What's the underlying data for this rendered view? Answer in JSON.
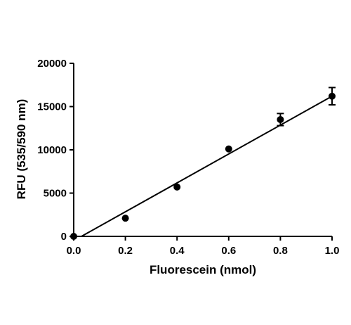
{
  "chart_data": {
    "type": "scatter",
    "xlabel": "Fluorescein (nmol)",
    "ylabel": "RFU (535/590 nm)",
    "xlim": [
      0,
      1.0
    ],
    "ylim": [
      0,
      20000
    ],
    "x_ticks": [
      0.0,
      0.2,
      0.4,
      0.6,
      0.8,
      1.0
    ],
    "x_tick_labels": [
      "0.0",
      "0.2",
      "0.4",
      "0.6",
      "0.8",
      "1.0"
    ],
    "y_ticks": [
      0,
      5000,
      10000,
      15000,
      20000
    ],
    "y_tick_labels": [
      "0",
      "5000",
      "10000",
      "15000",
      "20000"
    ],
    "grid": false,
    "legend": "none",
    "points": [
      {
        "x": 0.0,
        "y": 0,
        "err": 0
      },
      {
        "x": 0.2,
        "y": 2100,
        "err": 0
      },
      {
        "x": 0.4,
        "y": 5700,
        "err": 0
      },
      {
        "x": 0.6,
        "y": 10100,
        "err": 0
      },
      {
        "x": 0.8,
        "y": 13500,
        "err": 700
      },
      {
        "x": 1.0,
        "y": 16200,
        "err": 1000
      }
    ],
    "fit_line": {
      "x": [
        0.03,
        1.0
      ],
      "y": [
        0,
        16200
      ]
    }
  }
}
